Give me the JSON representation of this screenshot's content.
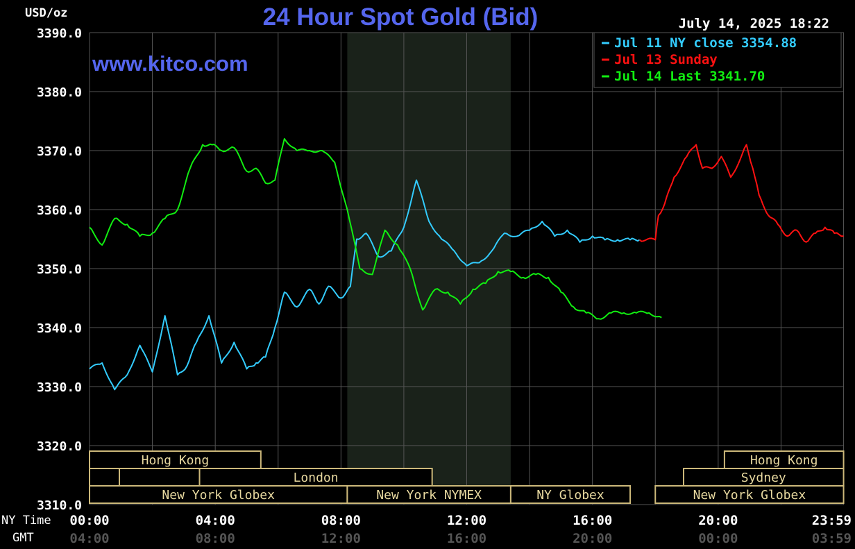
{
  "chart_data": {
    "type": "line",
    "title": "24 Hour Spot Gold (Bid)",
    "unit_label": "USD/oz",
    "watermark": "www.kitco.com",
    "timestamp": "July 14, 2025 18:22",
    "y_ticks": [
      "3390.0",
      "3380.0",
      "3370.0",
      "3360.0",
      "3350.0",
      "3340.0",
      "3330.0",
      "3320.0",
      "3310.0"
    ],
    "ylim": [
      3310,
      3390
    ],
    "xlim": [
      0,
      24
    ],
    "x_row_labels": {
      "ny": "NY Time",
      "gmt": "GMT"
    },
    "x_ticks_ny": [
      "00:00",
      "04:00",
      "08:00",
      "12:00",
      "16:00",
      "20:00",
      "23:59"
    ],
    "x_ticks_gmt": [
      "04:00",
      "08:00",
      "12:00",
      "16:00",
      "20:00",
      "00:00",
      "03:59"
    ],
    "shaded_session_hours": [
      8.2,
      13.4
    ],
    "grid": true,
    "legend_placement": "top-right",
    "legend": [
      {
        "label": "Jul 11 NY close 3354.88",
        "color": "#33ccff"
      },
      {
        "label": "Jul 13 Sunday",
        "color": "#ff1111"
      },
      {
        "label": "Jul 14 Last 3341.70",
        "color": "#11ee11"
      }
    ],
    "series": [
      {
        "name": "Jul 11 NY close 3354.88",
        "color": "#33ccff",
        "x": [
          0,
          0.4,
          0.8,
          1.2,
          1.6,
          2.0,
          2.4,
          2.8,
          3.1,
          3.4,
          3.8,
          4.2,
          4.6,
          5.0,
          5.3,
          5.6,
          5.9,
          6.2,
          6.6,
          7.0,
          7.3,
          7.6,
          8.0,
          8.3,
          8.5,
          8.8,
          9.2,
          9.6,
          10.0,
          10.4,
          10.8,
          11.2,
          11.6,
          12.0,
          12.4,
          12.8,
          13.2,
          13.6,
          14.0,
          14.4,
          14.8,
          15.2,
          15.6,
          16.0,
          16.4,
          16.8,
          17.2,
          17.5
        ],
        "values": [
          3333,
          3334,
          3329.5,
          3332,
          3337,
          3332.5,
          3342,
          3332,
          3333.5,
          3337.5,
          3342,
          3334,
          3337.5,
          3333,
          3334,
          3335,
          3340,
          3346,
          3343.5,
          3346.5,
          3344,
          3347,
          3345,
          3347,
          3355,
          3356,
          3352,
          3353,
          3357,
          3365,
          3358,
          3355,
          3353,
          3350.5,
          3351,
          3353,
          3356,
          3355.5,
          3356.5,
          3358,
          3355.5,
          3356.5,
          3354.5,
          3355.5,
          3354.88,
          3354.88,
          3354.88,
          3354.88
        ]
      },
      {
        "name": "Jul 13 Sunday",
        "color": "#ff1111",
        "x": [
          17.5,
          18.0,
          18.1,
          18.3,
          18.6,
          19.0,
          19.3,
          19.5,
          19.8,
          20.1,
          20.4,
          20.7,
          20.9,
          21.1,
          21.3,
          21.6,
          21.9,
          22.2,
          22.5,
          22.8,
          23.1,
          23.4,
          23.7,
          23.99
        ],
        "values": [
          3354.88,
          3354.88,
          3359,
          3361,
          3365.5,
          3369,
          3371,
          3367,
          3367,
          3369,
          3365.5,
          3368.5,
          3371,
          3367,
          3362.5,
          3359,
          3357.5,
          3355.5,
          3356.5,
          3354.5,
          3356,
          3357,
          3356,
          3355.5
        ]
      },
      {
        "name": "Jul 14 Last 3341.70",
        "color": "#11ee11",
        "x": [
          0,
          0.4,
          0.8,
          1.2,
          1.6,
          2.0,
          2.4,
          2.8,
          3.2,
          3.6,
          3.9,
          4.2,
          4.6,
          5.0,
          5.3,
          5.6,
          5.9,
          6.2,
          6.6,
          7.0,
          7.4,
          7.8,
          8.2,
          8.6,
          9.0,
          9.4,
          9.8,
          10.2,
          10.6,
          11.0,
          11.4,
          11.8,
          12.2,
          12.6,
          13.0,
          13.4,
          13.8,
          14.2,
          14.6,
          15.0,
          15.4,
          15.8,
          16.2,
          16.6,
          17.0,
          17.4,
          17.8,
          18.2
        ],
        "values": [
          3357,
          3354,
          3358.5,
          3357.5,
          3355.5,
          3356,
          3358.5,
          3360,
          3367,
          3371,
          3371,
          3370,
          3370.5,
          3366.5,
          3367,
          3364.5,
          3365,
          3372,
          3370,
          3370,
          3370,
          3368,
          3360,
          3350,
          3349,
          3356.5,
          3354,
          3350,
          3343,
          3346.5,
          3346,
          3344,
          3346.5,
          3347.5,
          3349.5,
          3349.5,
          3348.5,
          3349,
          3348.5,
          3346,
          3343.5,
          3342.5,
          3341.5,
          3342.5,
          3342.5,
          3342.5,
          3342.5,
          3341.7
        ]
      }
    ],
    "sessions": [
      {
        "label": "Hong Kong",
        "start": 0,
        "end": 5.45,
        "row": 1
      },
      {
        "label": "",
        "start": 0,
        "end": 0.95,
        "row": 2
      },
      {
        "label": "",
        "start": 0.95,
        "end": 3.5,
        "row": 2
      },
      {
        "label": "London",
        "start": 3.5,
        "end": 10.9,
        "row": 2
      },
      {
        "label": "New York Globex",
        "start": 0,
        "end": 8.2,
        "row": 3
      },
      {
        "label": "New York NYMEX",
        "start": 8.2,
        "end": 13.4,
        "row": 3
      },
      {
        "label": "NY Globex",
        "start": 13.4,
        "end": 17.2,
        "row": 3
      },
      {
        "label": "Hong Kong",
        "start": 20.2,
        "end": 23.99,
        "row": 1
      },
      {
        "label": "Sydney",
        "start": 18.9,
        "end": 23.99,
        "row": 2
      },
      {
        "label": "New York Globex",
        "start": 18.0,
        "end": 23.99,
        "row": 3
      }
    ]
  }
}
